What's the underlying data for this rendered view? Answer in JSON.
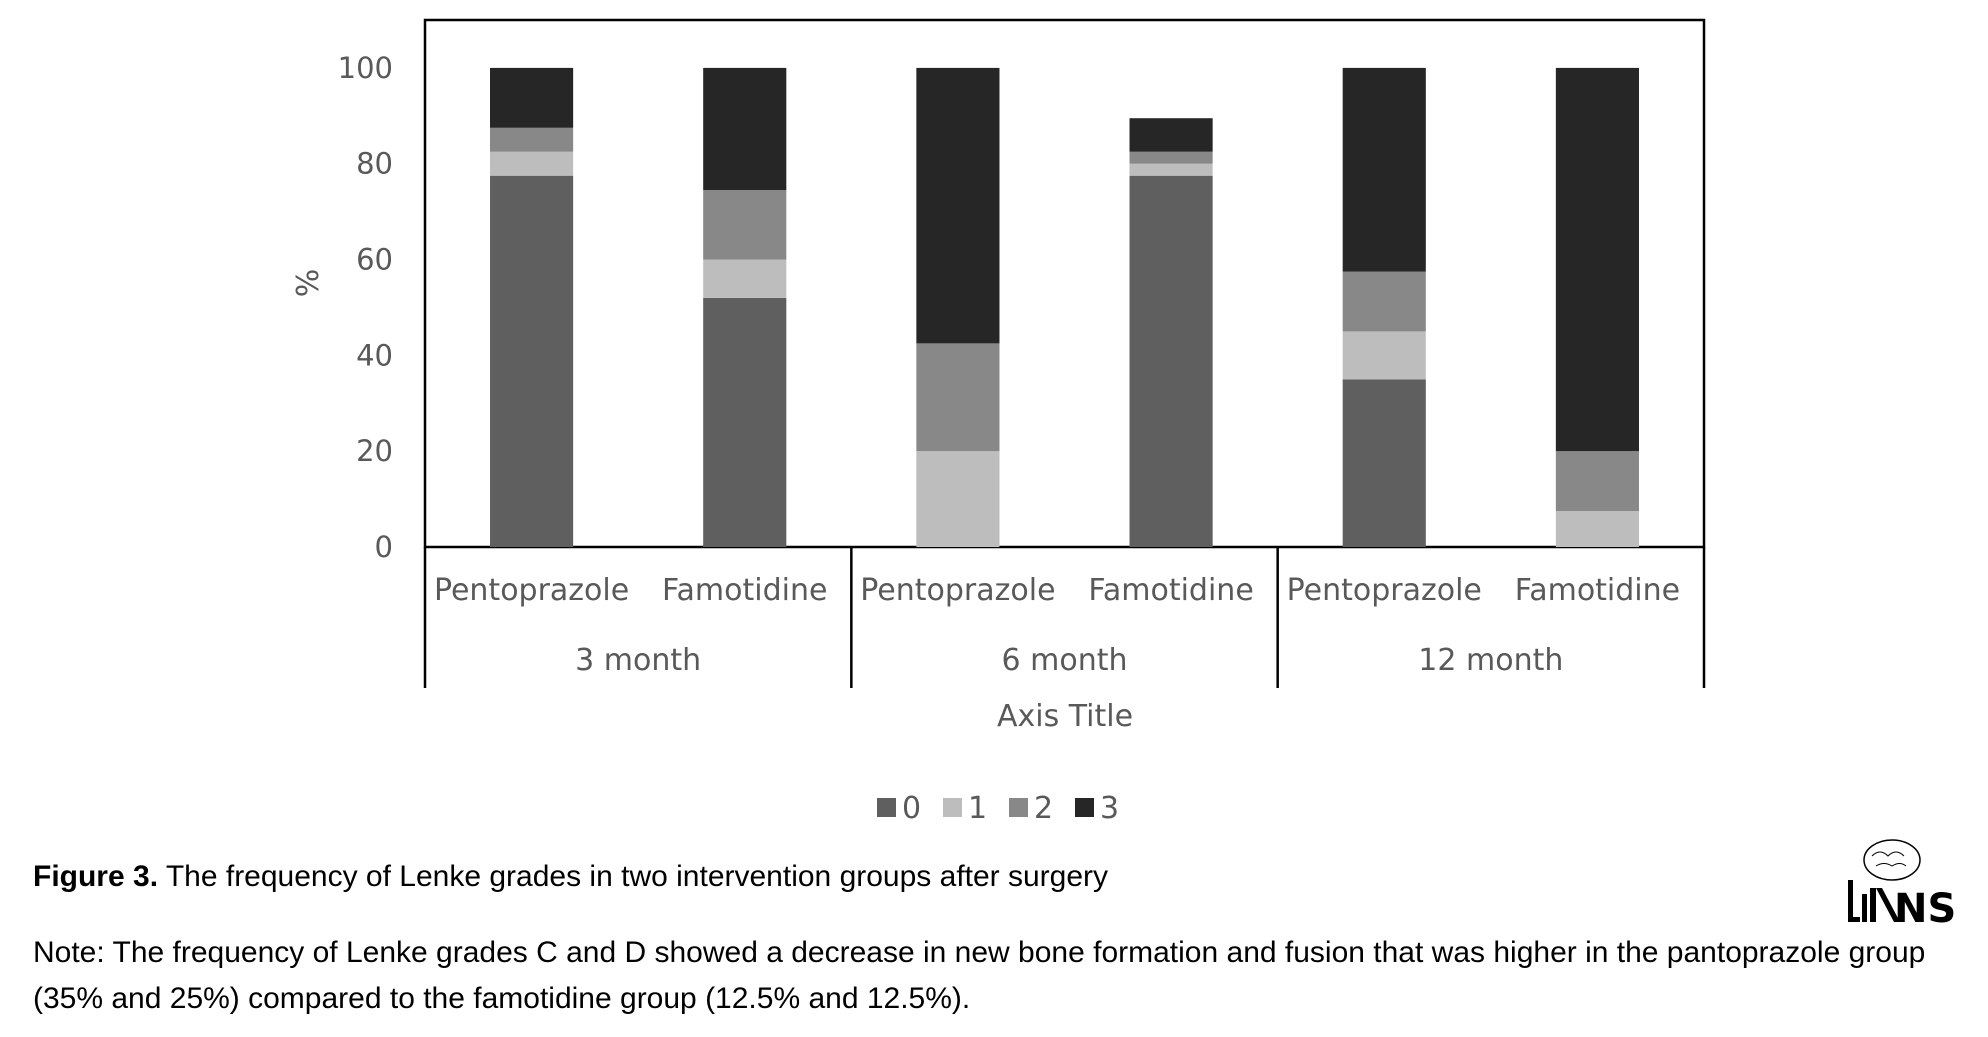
{
  "chart_data": {
    "type": "bar",
    "stacked": true,
    "ylabel": "%",
    "xlabel": "Axis Title",
    "ylim": [
      0,
      110
    ],
    "yticks": [
      0,
      20,
      40,
      60,
      80,
      100
    ],
    "groups": [
      {
        "label": "3 month",
        "categories": [
          "Pentoprazole",
          "Famotidine"
        ]
      },
      {
        "label": "6 month",
        "categories": [
          "Pentoprazole",
          "Famotidine"
        ]
      },
      {
        "label": "12 month",
        "categories": [
          "Pentoprazole",
          "Famotidine"
        ]
      }
    ],
    "series": [
      {
        "name": "0",
        "color": "#5f5f5f",
        "values": [
          77.5,
          52,
          0,
          77.5,
          35,
          0
        ]
      },
      {
        "name": "1",
        "color": "#bdbdbd",
        "values": [
          5,
          8,
          20,
          2.5,
          10,
          7.5
        ]
      },
      {
        "name": "2",
        "color": "#888888",
        "values": [
          5,
          14.5,
          22.5,
          2.5,
          12.5,
          12.5
        ]
      },
      {
        "name": "3",
        "color": "#262626",
        "values": [
          12.5,
          25.5,
          57.5,
          7,
          42.5,
          80
        ]
      }
    ],
    "legend_position": "bottom",
    "grid": false
  },
  "caption": {
    "label": "Figure 3.",
    "text": " The frequency of Lenke grades in two intervention groups after surgery"
  },
  "note": "Note: The frequency of Lenke grades C and D showed a decrease in new bone formation and fusion that was higher in the pantoprazole group (35% and 25%) compared to the famotidine group (12.5% and 12.5%).",
  "logo": {
    "text": "NS",
    "icon": "brain-spine-logo"
  }
}
